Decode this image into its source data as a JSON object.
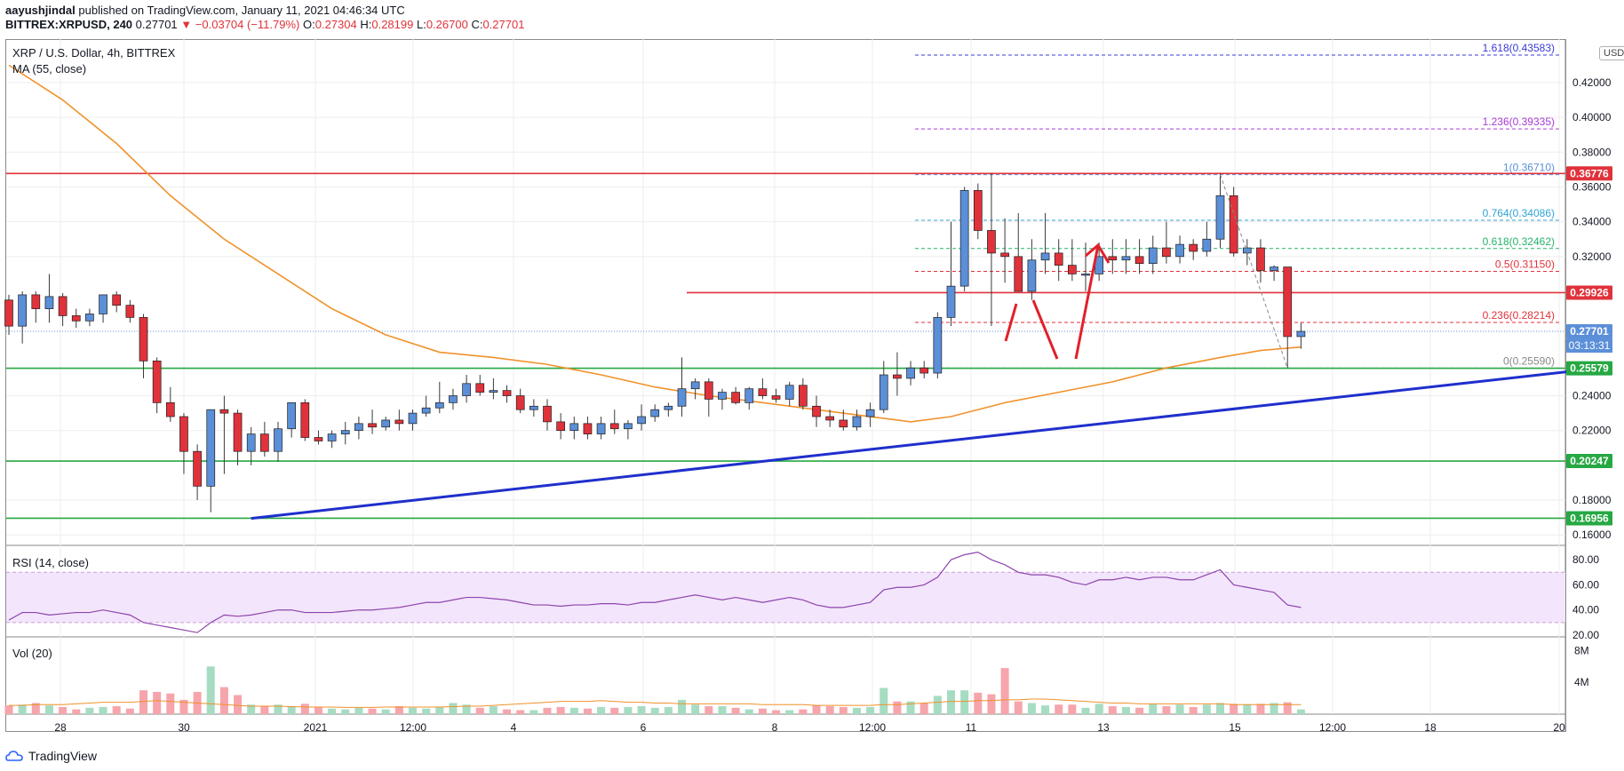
{
  "header": {
    "author": "aayushjindal",
    "published": "published on TradingView.com, January 11, 2021 04:46:34 UTC",
    "symbol": "BITTREX:XRPUSD, 240",
    "last": "0.27701",
    "change": "−0.03704 (−11.79%)",
    "o_label": "O:",
    "o": "0.27304",
    "h_label": "H:",
    "h": "0.28199",
    "l_label": "L:",
    "l": "0.26700",
    "c_label": "C:",
    "c": "0.27701"
  },
  "pane": {
    "symbol_title": "XRP / U.S. Dollar, 4h, BITTREX",
    "ma_title": "MA (55, close)",
    "rsi_title": "RSI (14, close)",
    "vol_title": "Vol (20)",
    "currency": "USD",
    "countdown": "03:13:31",
    "footer_brand": "TradingView"
  },
  "chart_data": {
    "type": "candlestick",
    "title": "XRP / U.S. Dollar, 4h, BITTREX",
    "y_ticks": [
      "0.42000",
      "0.40000",
      "0.38000",
      "0.36000",
      "0.34000",
      "0.32000",
      "0.24000",
      "0.22000",
      "0.18000",
      "0.16000"
    ],
    "y_range": [
      0.155,
      0.445
    ],
    "x_ticks": [
      "28",
      "30",
      "2021",
      "12:00",
      "4",
      "6",
      "8",
      "12:00",
      "11",
      "13",
      "15",
      "12:00",
      "18",
      "20"
    ],
    "price_badges": [
      {
        "value": "0.36776",
        "color": "#e0323b"
      },
      {
        "value": "0.29926",
        "color": "#e0323b"
      },
      {
        "value": "0.27701",
        "color": "#5b8fd8"
      },
      {
        "value": "0.25579",
        "color": "#26a843"
      },
      {
        "value": "0.20247",
        "color": "#26a843"
      },
      {
        "value": "0.16956",
        "color": "#26a843"
      }
    ],
    "fib_levels": [
      {
        "label": "1.618(0.43583)",
        "value": 0.43583,
        "color": "#3b3bd6"
      },
      {
        "label": "1.236(0.39335)",
        "value": 0.39335,
        "color": "#a83bd6"
      },
      {
        "label": "1(0.36710)",
        "value": 0.3671,
        "color": "#5b8fd8"
      },
      {
        "label": "0.764(0.34086)",
        "value": 0.34086,
        "color": "#2fa3d6"
      },
      {
        "label": "0.618(0.32462)",
        "value": 0.32462,
        "color": "#26b36b"
      },
      {
        "label": "0.5(0.31150)",
        "value": 0.3115,
        "color": "#e0323b"
      },
      {
        "label": "0.236(0.28214)",
        "value": 0.28214,
        "color": "#e0323b"
      },
      {
        "label": "0(0.25590)",
        "value": 0.2559,
        "color": "#888888"
      }
    ],
    "horizontal_lines": [
      {
        "value": 0.36776,
        "color": "#e0323b"
      },
      {
        "value": 0.29926,
        "color": "#e0323b"
      },
      {
        "value": 0.25579,
        "color": "#26a843"
      },
      {
        "value": 0.20247,
        "color": "#26a843"
      },
      {
        "value": 0.16956,
        "color": "#26a843"
      }
    ],
    "trendline": {
      "from": {
        "t": 18,
        "p": 0.1695
      },
      "to": {
        "t": 118,
        "p": 0.2557
      },
      "color": "#1f2fcc"
    },
    "up_color": "#5b8fd8",
    "down_color": "#e0323b",
    "candles": [
      [
        0.295,
        0.298,
        0.275,
        0.28
      ],
      [
        0.28,
        0.3,
        0.27,
        0.298
      ],
      [
        0.298,
        0.3,
        0.282,
        0.29
      ],
      [
        0.29,
        0.31,
        0.282,
        0.297
      ],
      [
        0.297,
        0.299,
        0.28,
        0.286
      ],
      [
        0.286,
        0.29,
        0.279,
        0.283
      ],
      [
        0.283,
        0.29,
        0.28,
        0.287
      ],
      [
        0.287,
        0.296,
        0.282,
        0.298
      ],
      [
        0.298,
        0.3,
        0.288,
        0.292
      ],
      [
        0.292,
        0.295,
        0.282,
        0.285
      ],
      [
        0.285,
        0.287,
        0.25,
        0.26
      ],
      [
        0.26,
        0.262,
        0.23,
        0.236
      ],
      [
        0.236,
        0.245,
        0.225,
        0.228
      ],
      [
        0.228,
        0.23,
        0.195,
        0.208
      ],
      [
        0.208,
        0.212,
        0.18,
        0.188
      ],
      [
        0.188,
        0.232,
        0.173,
        0.232
      ],
      [
        0.232,
        0.24,
        0.195,
        0.23
      ],
      [
        0.23,
        0.232,
        0.2,
        0.208
      ],
      [
        0.208,
        0.222,
        0.2,
        0.218
      ],
      [
        0.218,
        0.225,
        0.205,
        0.208
      ],
      [
        0.208,
        0.225,
        0.202,
        0.221
      ],
      [
        0.221,
        0.236,
        0.216,
        0.236
      ],
      [
        0.236,
        0.238,
        0.214,
        0.216
      ],
      [
        0.216,
        0.22,
        0.212,
        0.214
      ],
      [
        0.214,
        0.22,
        0.21,
        0.218
      ],
      [
        0.218,
        0.225,
        0.212,
        0.22
      ],
      [
        0.22,
        0.228,
        0.215,
        0.224
      ],
      [
        0.224,
        0.232,
        0.218,
        0.222
      ],
      [
        0.222,
        0.228,
        0.22,
        0.226
      ],
      [
        0.226,
        0.232,
        0.22,
        0.224
      ],
      [
        0.224,
        0.232,
        0.22,
        0.23
      ],
      [
        0.23,
        0.24,
        0.228,
        0.233
      ],
      [
        0.233,
        0.248,
        0.23,
        0.236
      ],
      [
        0.236,
        0.244,
        0.232,
        0.24
      ],
      [
        0.24,
        0.252,
        0.236,
        0.247
      ],
      [
        0.247,
        0.252,
        0.24,
        0.242
      ],
      [
        0.242,
        0.25,
        0.238,
        0.243
      ],
      [
        0.243,
        0.246,
        0.236,
        0.24
      ],
      [
        0.24,
        0.244,
        0.23,
        0.232
      ],
      [
        0.232,
        0.238,
        0.228,
        0.234
      ],
      [
        0.234,
        0.238,
        0.22,
        0.225
      ],
      [
        0.225,
        0.23,
        0.215,
        0.22
      ],
      [
        0.22,
        0.228,
        0.215,
        0.224
      ],
      [
        0.224,
        0.228,
        0.215,
        0.218
      ],
      [
        0.218,
        0.228,
        0.215,
        0.224
      ],
      [
        0.224,
        0.232,
        0.218,
        0.221
      ],
      [
        0.221,
        0.226,
        0.215,
        0.224
      ],
      [
        0.224,
        0.235,
        0.22,
        0.228
      ],
      [
        0.228,
        0.235,
        0.225,
        0.232
      ],
      [
        0.232,
        0.236,
        0.228,
        0.234
      ],
      [
        0.234,
        0.262,
        0.228,
        0.244
      ],
      [
        0.244,
        0.25,
        0.238,
        0.248
      ],
      [
        0.248,
        0.25,
        0.228,
        0.238
      ],
      [
        0.238,
        0.244,
        0.232,
        0.242
      ],
      [
        0.242,
        0.245,
        0.235,
        0.236
      ],
      [
        0.236,
        0.245,
        0.232,
        0.244
      ],
      [
        0.244,
        0.25,
        0.238,
        0.24
      ],
      [
        0.24,
        0.244,
        0.236,
        0.238
      ],
      [
        0.238,
        0.248,
        0.234,
        0.246
      ],
      [
        0.246,
        0.25,
        0.232,
        0.234
      ],
      [
        0.234,
        0.24,
        0.222,
        0.228
      ],
      [
        0.228,
        0.232,
        0.222,
        0.226
      ],
      [
        0.226,
        0.232,
        0.22,
        0.222
      ],
      [
        0.222,
        0.232,
        0.22,
        0.228
      ],
      [
        0.228,
        0.236,
        0.222,
        0.232
      ],
      [
        0.232,
        0.26,
        0.23,
        0.252
      ],
      [
        0.252,
        0.265,
        0.24,
        0.25
      ],
      [
        0.25,
        0.26,
        0.246,
        0.256
      ],
      [
        0.256,
        0.26,
        0.25,
        0.253
      ],
      [
        0.253,
        0.288,
        0.25,
        0.285
      ],
      [
        0.285,
        0.34,
        0.28,
        0.303
      ],
      [
        0.303,
        0.36,
        0.3,
        0.358
      ],
      [
        0.358,
        0.362,
        0.33,
        0.335
      ],
      [
        0.335,
        0.368,
        0.28,
        0.322
      ],
      [
        0.322,
        0.342,
        0.305,
        0.32
      ],
      [
        0.32,
        0.345,
        0.3,
        0.3
      ],
      [
        0.3,
        0.33,
        0.295,
        0.318
      ],
      [
        0.318,
        0.345,
        0.31,
        0.322
      ],
      [
        0.322,
        0.33,
        0.306,
        0.315
      ],
      [
        0.315,
        0.33,
        0.306,
        0.31
      ],
      [
        0.31,
        0.328,
        0.3,
        0.31
      ],
      [
        0.31,
        0.328,
        0.306,
        0.32
      ],
      [
        0.32,
        0.33,
        0.31,
        0.318
      ],
      [
        0.318,
        0.33,
        0.31,
        0.32
      ],
      [
        0.32,
        0.33,
        0.31,
        0.316
      ],
      [
        0.316,
        0.332,
        0.31,
        0.325
      ],
      [
        0.325,
        0.34,
        0.316,
        0.32
      ],
      [
        0.32,
        0.332,
        0.316,
        0.327
      ],
      [
        0.327,
        0.33,
        0.318,
        0.323
      ],
      [
        0.323,
        0.34,
        0.32,
        0.33
      ],
      [
        0.33,
        0.368,
        0.325,
        0.355
      ],
      [
        0.355,
        0.36,
        0.32,
        0.322
      ],
      [
        0.322,
        0.33,
        0.315,
        0.325
      ],
      [
        0.325,
        0.33,
        0.305,
        0.312
      ],
      [
        0.312,
        0.315,
        0.306,
        0.314
      ],
      [
        0.314,
        0.314,
        0.256,
        0.274
      ],
      [
        0.274,
        0.282,
        0.267,
        0.277
      ]
    ],
    "ma55": [
      [
        0,
        0.43
      ],
      [
        4,
        0.41
      ],
      [
        8,
        0.385
      ],
      [
        12,
        0.355
      ],
      [
        16,
        0.33
      ],
      [
        20,
        0.31
      ],
      [
        24,
        0.29
      ],
      [
        28,
        0.275
      ],
      [
        32,
        0.265
      ],
      [
        36,
        0.262
      ],
      [
        40,
        0.258
      ],
      [
        44,
        0.252
      ],
      [
        48,
        0.245
      ],
      [
        52,
        0.24
      ],
      [
        56,
        0.236
      ],
      [
        60,
        0.232
      ],
      [
        64,
        0.228
      ],
      [
        67,
        0.225
      ],
      [
        70,
        0.228
      ],
      [
        74,
        0.236
      ],
      [
        78,
        0.242
      ],
      [
        82,
        0.248
      ],
      [
        86,
        0.256
      ],
      [
        90,
        0.262
      ],
      [
        93,
        0.266
      ],
      [
        96,
        0.268
      ]
    ],
    "rsi_series": {
      "name": "RSI (14, close)",
      "range": [
        20,
        90
      ],
      "ticks": [
        "80.00",
        "60.00",
        "40.00",
        "20.00"
      ],
      "band": [
        30,
        70
      ],
      "values": [
        32,
        38,
        38,
        36,
        37,
        38,
        38,
        40,
        38,
        36,
        30,
        28,
        26,
        24,
        22,
        30,
        36,
        35,
        36,
        38,
        40,
        40,
        38,
        38,
        38,
        39,
        40,
        40,
        41,
        42,
        44,
        46,
        46,
        48,
        50,
        50,
        49,
        48,
        46,
        44,
        44,
        43,
        44,
        44,
        45,
        45,
        44,
        46,
        46,
        48,
        50,
        52,
        50,
        48,
        50,
        48,
        46,
        48,
        50,
        48,
        44,
        42,
        42,
        44,
        46,
        56,
        58,
        58,
        60,
        66,
        80,
        84,
        86,
        80,
        76,
        70,
        68,
        68,
        66,
        62,
        60,
        64,
        64,
        66,
        64,
        66,
        66,
        64,
        64,
        68,
        72,
        60,
        58,
        56,
        54,
        44,
        42
      ]
    },
    "vol_series": {
      "name": "Vol (20)",
      "range": [
        0,
        9.5
      ],
      "ticks": [
        "8M",
        "4M"
      ],
      "values": [
        1.1,
        1.2,
        1.4,
        1.1,
        0.9,
        0.6,
        0.8,
        0.9,
        1.0,
        0.7,
        3.0,
        2.8,
        2.6,
        1.8,
        2.8,
        6.0,
        3.4,
        2.4,
        1.2,
        1.0,
        1.2,
        1.0,
        1.3,
        0.9,
        0.7,
        0.6,
        0.8,
        0.7,
        0.6,
        1.0,
        0.8,
        0.7,
        0.9,
        1.4,
        1.2,
        0.8,
        1.0,
        0.6,
        0.5,
        0.5,
        0.8,
        0.9,
        0.8,
        0.7,
        0.9,
        0.8,
        0.9,
        1.0,
        0.8,
        0.9,
        1.8,
        1.2,
        1.0,
        1.0,
        0.8,
        0.6,
        0.7,
        0.5,
        0.5,
        0.6,
        1.1,
        1.0,
        0.9,
        0.8,
        0.9,
        3.3,
        1.6,
        1.6,
        1.4,
        2.3,
        3.0,
        3.0,
        2.7,
        2.5,
        5.8,
        1.6,
        1.4,
        1.1,
        1.2,
        1.2,
        0.8,
        1.3,
        1.0,
        0.9,
        0.8,
        1.3,
        1.0,
        1.2,
        0.9,
        1.2,
        1.4,
        1.3,
        1.2,
        1.3,
        1.4,
        1.5,
        0.6
      ],
      "avg": [
        1.1,
        1.1,
        1.2,
        1.2,
        1.2,
        1.3,
        1.4,
        1.5,
        1.5,
        1.5,
        1.6,
        1.7,
        1.6,
        1.5,
        1.4,
        1.3,
        1.2,
        1.1,
        1.0,
        1.0,
        1.0,
        0.95,
        0.9,
        0.9,
        0.9,
        0.85,
        0.85,
        0.85,
        0.9,
        0.9,
        0.9,
        0.9,
        0.9,
        0.95,
        1.0,
        1.0,
        1.1,
        1.2,
        1.3,
        1.4,
        1.5,
        1.6,
        1.6,
        1.6,
        1.7,
        1.6,
        1.5,
        1.5,
        1.4,
        1.4,
        1.3,
        1.3,
        1.3,
        1.3,
        1.3,
        1.3,
        1.2,
        1.2,
        1.2,
        1.2,
        1.1,
        1.1,
        1.1,
        1.1,
        1.1,
        1.2,
        1.2,
        1.3,
        1.4,
        1.5,
        1.6,
        1.6,
        1.7,
        1.7,
        1.8,
        1.8,
        1.9,
        1.9,
        1.8,
        1.7,
        1.6,
        1.5,
        1.4,
        1.4,
        1.3,
        1.3,
        1.3,
        1.3,
        1.3,
        1.3,
        1.3,
        1.2,
        1.2,
        1.2,
        1.2,
        1.2,
        1.2
      ]
    }
  }
}
